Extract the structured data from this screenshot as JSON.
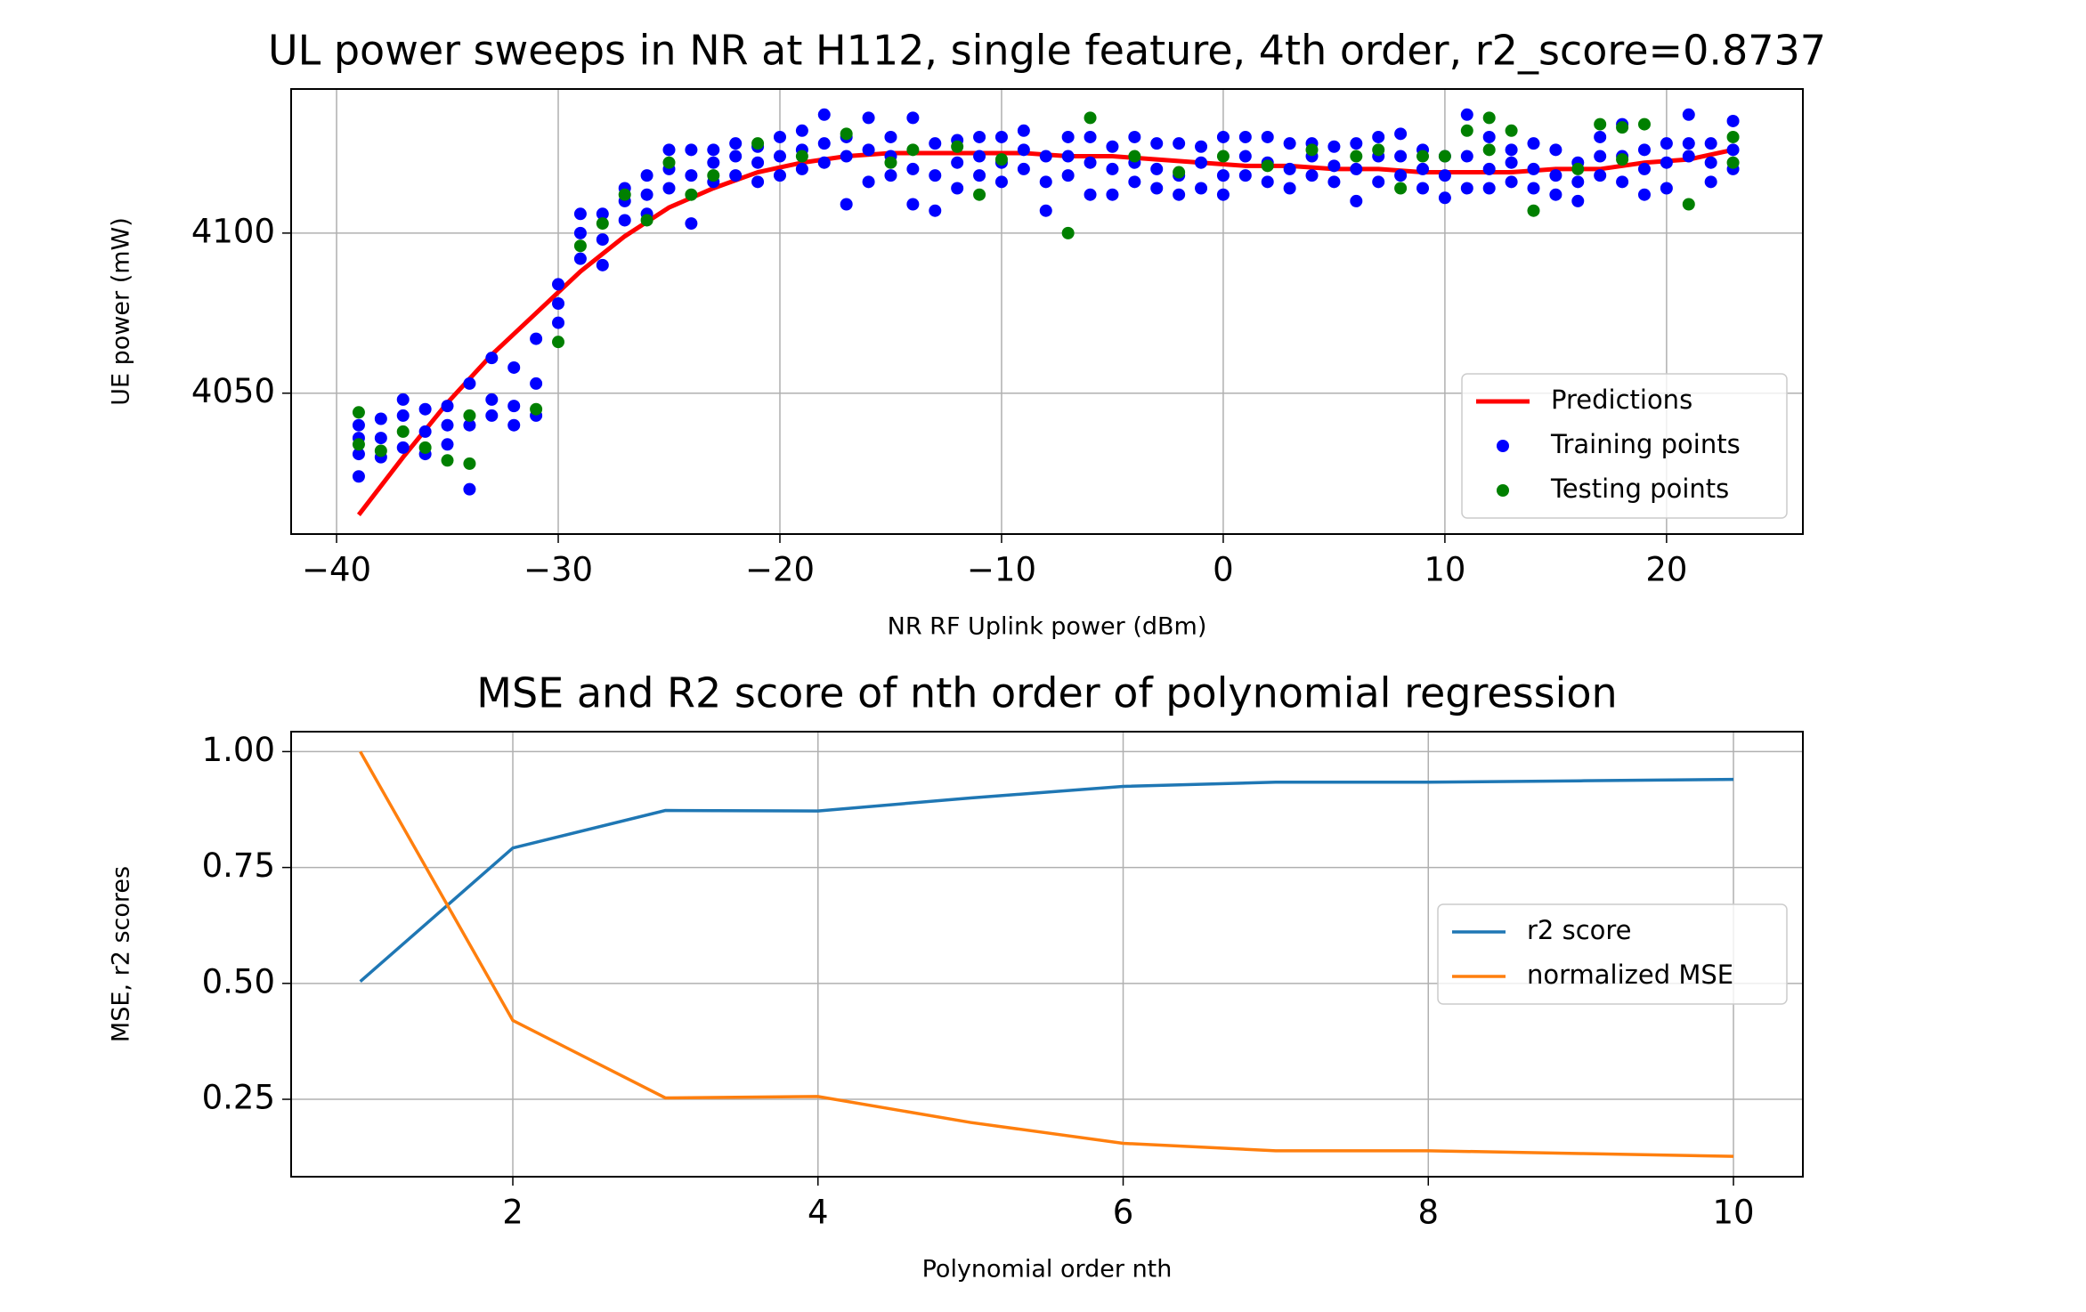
{
  "chart_data": [
    {
      "type": "scatter",
      "title": "UL power sweeps in NR at H112, single feature, 4th order, r2_score=0.8737",
      "x_label": "NR RF Uplink power (dBm)",
      "y_label": "UE power (mW)",
      "xlim": [
        -42.05,
        26.15
      ],
      "ylim": [
        4006,
        4145
      ],
      "xticks": [
        {
          "value": -40,
          "label": "−40"
        },
        {
          "value": -30,
          "label": "−30"
        },
        {
          "value": -20,
          "label": "−20"
        },
        {
          "value": -10,
          "label": "−10"
        },
        0,
        10,
        20
      ],
      "yticks": [
        4050,
        4100
      ],
      "grid": true,
      "legend": "lower right",
      "series": [
        {
          "name": "Predictions",
          "color": "#ff0000",
          "mode": "line",
          "x": [
            -39,
            -37,
            -35,
            -33,
            -31,
            -29,
            -27,
            -25,
            -23,
            -21,
            -19,
            -17,
            -15,
            -13,
            -11,
            -9,
            -7,
            -5,
            -3,
            -1,
            1,
            3,
            5,
            7,
            9,
            11,
            13,
            15,
            17,
            19,
            21,
            23
          ],
          "values": [
            4012,
            4030,
            4047,
            4062,
            4075,
            4088,
            4099,
            4108,
            4114,
            4119,
            4122,
            4124,
            4125,
            4125,
            4125,
            4125,
            4124,
            4124,
            4123,
            4122,
            4121,
            4121,
            4120,
            4120,
            4119,
            4119,
            4119,
            4120,
            4120,
            4122,
            4123,
            4126
          ]
        },
        {
          "name": "Training points",
          "color": "#0000ff",
          "mode": "marker",
          "x": [
            -39,
            -39,
            -39,
            -39,
            -38,
            -38,
            -38,
            -37,
            -37,
            -37,
            -36,
            -36,
            -36,
            -35,
            -35,
            -35,
            -34,
            -34,
            -34,
            -33,
            -33,
            -33,
            -32,
            -32,
            -32,
            -31,
            -31,
            -31,
            -30,
            -30,
            -30,
            -29,
            -29,
            -29,
            -28,
            -28,
            -28,
            -27,
            -27,
            -27,
            -26,
            -26,
            -26,
            -25,
            -25,
            -25,
            -24,
            -24,
            -24,
            -23,
            -23,
            -23,
            -22,
            -22,
            -22,
            -21,
            -21,
            -21,
            -20,
            -20,
            -20,
            -19,
            -19,
            -19,
            -18,
            -18,
            -18,
            -17,
            -17,
            -17,
            -16,
            -16,
            -16,
            -15,
            -15,
            -15,
            -14,
            -14,
            -14,
            -13,
            -13,
            -13,
            -12,
            -12,
            -12,
            -11,
            -11,
            -11,
            -10,
            -10,
            -10,
            -9,
            -9,
            -9,
            -8,
            -8,
            -8,
            -7,
            -7,
            -7,
            -6,
            -6,
            -6,
            -5,
            -5,
            -5,
            -4,
            -4,
            -4,
            -3,
            -3,
            -3,
            -2,
            -2,
            -2,
            -1,
            -1,
            -1,
            0,
            0,
            0,
            1,
            1,
            1,
            2,
            2,
            2,
            3,
            3,
            3,
            4,
            4,
            4,
            5,
            5,
            5,
            6,
            6,
            6,
            7,
            7,
            7,
            8,
            8,
            8,
            9,
            9,
            9,
            10,
            10,
            10,
            11,
            11,
            11,
            12,
            12,
            12,
            13,
            13,
            13,
            14,
            14,
            14,
            15,
            15,
            15,
            16,
            16,
            16,
            17,
            17,
            17,
            18,
            18,
            18,
            19,
            19,
            19,
            20,
            20,
            20,
            21,
            21,
            21,
            22,
            22,
            22,
            23,
            23,
            23
          ],
          "values": [
            4024,
            4031,
            4036,
            4040,
            4030,
            4036,
            4042,
            4033,
            4043,
            4048,
            4031,
            4038,
            4045,
            4034,
            4040,
            4046,
            4020,
            4040,
            4053,
            4043,
            4048,
            4061,
            4040,
            4046,
            4058,
            4043,
            4053,
            4067,
            4072,
            4078,
            4084,
            4092,
            4100,
            4106,
            4090,
            4098,
            4106,
            4104,
            4110,
            4114,
            4106,
            4112,
            4118,
            4114,
            4120,
            4126,
            4103,
            4118,
            4126,
            4116,
            4122,
            4126,
            4118,
            4124,
            4128,
            4116,
            4122,
            4127,
            4118,
            4124,
            4130,
            4120,
            4126,
            4132,
            4122,
            4128,
            4137,
            4109,
            4124,
            4130,
            4116,
            4126,
            4136,
            4118,
            4124,
            4130,
            4109,
            4120,
            4136,
            4107,
            4118,
            4128,
            4114,
            4122,
            4129,
            4118,
            4124,
            4130,
            4116,
            4122,
            4130,
            4120,
            4126,
            4132,
            4107,
            4116,
            4124,
            4118,
            4124,
            4130,
            4112,
            4122,
            4130,
            4112,
            4120,
            4127,
            4116,
            4122,
            4130,
            4114,
            4120,
            4128,
            4112,
            4118,
            4128,
            4114,
            4122,
            4127,
            4112,
            4118,
            4130,
            4118,
            4124,
            4130,
            4116,
            4122,
            4130,
            4114,
            4120,
            4128,
            4118,
            4124,
            4128,
            4116,
            4121,
            4127,
            4110,
            4120,
            4128,
            4116,
            4124,
            4130,
            4118,
            4124,
            4131,
            4114,
            4120,
            4126,
            4111,
            4118,
            4124,
            4114,
            4124,
            4137,
            4114,
            4120,
            4130,
            4116,
            4122,
            4126,
            4114,
            4120,
            4128,
            4112,
            4118,
            4126,
            4110,
            4116,
            4122,
            4118,
            4124,
            4130,
            4116,
            4124,
            4134,
            4112,
            4120,
            4126,
            4114,
            4122,
            4128,
            4124,
            4128,
            4137,
            4116,
            4122,
            4128,
            4120,
            4126,
            4135
          ]
        },
        {
          "name": "Testing points",
          "color": "#008000",
          "mode": "marker",
          "x": [
            -39,
            -39,
            -38,
            -37,
            -36,
            -35,
            -34,
            -34,
            -31,
            -30,
            -29,
            -28,
            -27,
            -26,
            -25,
            -24,
            -23,
            -21,
            -19,
            -17,
            -15,
            -14,
            -12,
            -11,
            -10,
            -7,
            -6,
            -4,
            -2,
            0,
            2,
            4,
            6,
            7,
            8,
            9,
            10,
            11,
            12,
            12,
            13,
            14,
            16,
            17,
            18,
            18,
            19,
            21,
            23,
            23
          ],
          "values": [
            4034,
            4044,
            4032,
            4038,
            4033,
            4029,
            4028,
            4043,
            4045,
            4066,
            4096,
            4103,
            4112,
            4104,
            4122,
            4112,
            4118,
            4128,
            4124,
            4131,
            4122,
            4126,
            4127,
            4112,
            4123,
            4100,
            4136,
            4124,
            4119,
            4124,
            4121,
            4126,
            4124,
            4126,
            4114,
            4124,
            4124,
            4132,
            4126,
            4136,
            4132,
            4107,
            4120,
            4134,
            4123,
            4133,
            4134,
            4109,
            4122,
            4130
          ]
        }
      ]
    },
    {
      "type": "line",
      "title": "MSE and R2 score of nth order of polynomial regression",
      "x_label": "Polynomial order nth",
      "y_label": "MSE, r2 scores",
      "xlim": [
        0.547,
        10.455
      ],
      "ylim": [
        0.083,
        1.043
      ],
      "xticks": [
        2,
        4,
        6,
        8,
        10
      ],
      "yticks": [
        0.25,
        {
          "value": 0.5,
          "label": "0.50"
        },
        0.75,
        {
          "value": 1,
          "label": "1.00"
        }
      ],
      "grid": true,
      "legend": "center right",
      "x": [
        1,
        2,
        3,
        4,
        5,
        6,
        7,
        8,
        9,
        10
      ],
      "series": [
        {
          "name": "r2 score",
          "color": "#1f77b4",
          "values": [
            0.504,
            0.792,
            0.873,
            0.872,
            0.9,
            0.925,
            0.934,
            0.934,
            0.937,
            0.94
          ]
        },
        {
          "name": "normalized MSE",
          "color": "#ff7f0e",
          "values": [
            1.0,
            0.42,
            0.253,
            0.256,
            0.2,
            0.155,
            0.139,
            0.139,
            0.133,
            0.127
          ]
        }
      ]
    }
  ]
}
